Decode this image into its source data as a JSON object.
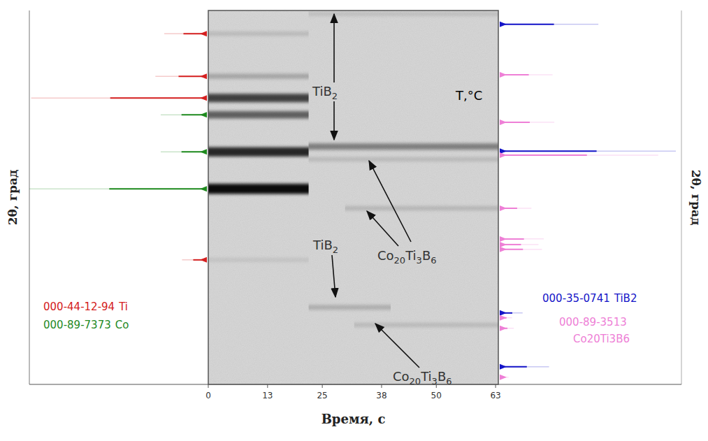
{
  "chart_data": {
    "type": "time_resolved_xrd",
    "x_label": "Время, с",
    "y_label": "2θ, град",
    "xlim": [
      0,
      63.6
    ],
    "xticks": [
      0,
      13,
      25,
      38,
      50,
      63
    ],
    "ylim": [
      0,
      100
    ],
    "tick_labels": "x",
    "bands": [
      {
        "y": 93.8,
        "x": [
          0,
          22
        ],
        "intensity": 12
      },
      {
        "y": 82.4,
        "x": [
          0,
          22
        ],
        "intensity": 22
      },
      {
        "y": 76.6,
        "x": [
          0,
          22
        ],
        "intensity": 70
      },
      {
        "y": 72.1,
        "x": [
          0,
          22
        ],
        "intensity": 55
      },
      {
        "y": 62.2,
        "x": [
          0,
          22
        ],
        "intensity": 82
      },
      {
        "y": 52.3,
        "x": [
          0,
          22
        ],
        "intensity": 95
      },
      {
        "y": 33.3,
        "x": [
          0,
          22
        ],
        "intensity": 8
      },
      {
        "y": 99.1,
        "x": [
          22,
          63.6
        ],
        "intensity": 10
      },
      {
        "y": 63.6,
        "x": [
          22,
          63.6
        ],
        "intensity": 40
      },
      {
        "y": 60.2,
        "x": [
          22,
          63.6
        ],
        "intensity": 12
      },
      {
        "y": 47.1,
        "x": [
          30,
          63.6
        ],
        "intensity": 14
      },
      {
        "y": 20.6,
        "x": [
          22,
          40
        ],
        "intensity": 18
      },
      {
        "y": 15.9,
        "x": [
          32,
          63.6
        ],
        "intensity": 12
      }
    ],
    "reference_ilim": [
      0,
      100
    ],
    "references_left": [
      {
        "code": "000-44-12-94",
        "phase": "Ti",
        "color": "#d42020",
        "peaks": {
          "y": [
            93.8,
            82.4,
            76.6,
            33.3
          ],
          "values": [
            24,
            29,
            99,
            14
          ]
        }
      },
      {
        "code": "000-89-7373",
        "phase": "Co",
        "color": "#1f8a1f",
        "peaks": {
          "y": [
            72.1,
            62.2,
            52.3
          ],
          "values": [
            26,
            26,
            100
          ]
        }
      }
    ],
    "references_right": [
      {
        "code": "000-35-0741",
        "phase": "TiB2",
        "color": "#1414c8",
        "peaks": {
          "y": [
            96.3,
            62.4,
            19.1,
            4.7
          ],
          "values": [
            56,
            100,
            13,
            28
          ]
        }
      },
      {
        "code": "000-89-3513",
        "phase": "Co20Ti3B6",
        "color": "#ee7fd6",
        "peaks": {
          "y": [
            82.8,
            70.1,
            61.3,
            47.1,
            38.9,
            37.4,
            36.1,
            17.8,
            15.0,
            1.9
          ],
          "values": [
            30,
            31,
            90,
            18,
            25,
            22,
            24,
            7,
            8,
            5
          ]
        }
      }
    ],
    "annotations": [
      {
        "text": "TiB2"
      },
      {
        "text": "Co20Ti3B6"
      },
      {
        "text": "TiB2"
      },
      {
        "text": "Co20Ti3B6"
      },
      {
        "text": "T,°C"
      }
    ]
  }
}
